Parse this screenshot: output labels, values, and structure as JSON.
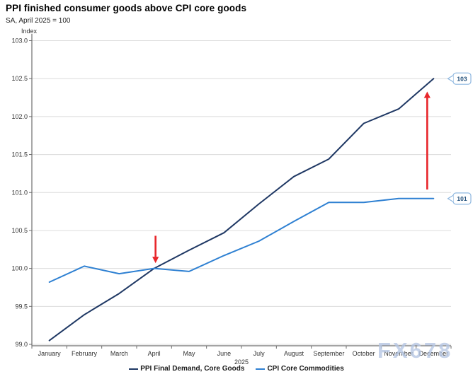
{
  "header": {
    "title": "PPI finished consumer goods above CPI core goods",
    "subtitle": "SA, April 2025 = 100"
  },
  "chart_data": {
    "type": "line",
    "title": "PPI finished consumer goods above CPI core goods",
    "subtitle": "SA, April 2025 = 100",
    "ylabel": "Index",
    "year_label": "2025",
    "ylim": [
      99.0,
      103.0
    ],
    "ytick_step": 0.5,
    "grid": true,
    "legend_position": "bottom",
    "categories": [
      "January",
      "February",
      "March",
      "April",
      "May",
      "June",
      "July",
      "August",
      "September",
      "October",
      "November",
      "December"
    ],
    "series": [
      {
        "name": "PPI Final Demand, Core Goods",
        "color": "#1f3864",
        "values": [
          99.05,
          99.39,
          99.67,
          100.0,
          100.24,
          100.47,
          100.85,
          101.21,
          101.44,
          101.91,
          102.1,
          102.5
        ]
      },
      {
        "name": "CPI Core Commodities",
        "color": "#2e80d2",
        "values": [
          99.82,
          100.03,
          99.93,
          100.0,
          99.96,
          100.17,
          100.36,
          100.62,
          100.87,
          100.87,
          100.92,
          100.92
        ]
      }
    ]
  },
  "annotations": {
    "arrows": [
      {
        "name": "april-crossing-arrow",
        "direction": "down",
        "month_index": 3,
        "x_offset": 2,
        "value_from": 100.43,
        "value_to": 100.07,
        "color": "#e8262b"
      },
      {
        "name": "december-gap-arrow",
        "direction": "up",
        "month_index": 11,
        "x_offset": -9,
        "value_from": 101.04,
        "value_to": 102.33,
        "color": "#e8262b"
      }
    ],
    "callouts": [
      {
        "label": "103",
        "series_index": 0,
        "text_color": "#1f4e79",
        "border_color": "#8fb8e0",
        "fill": "#ffffff"
      },
      {
        "label": "101",
        "series_index": 1,
        "text_color": "#1f4e79",
        "border_color": "#8fb8e0",
        "fill": "#ffffff"
      }
    ]
  },
  "watermark": {
    "text": "FX678",
    "color": "#b7c8e4"
  },
  "style": {
    "grid_color": "#dcdcdc",
    "axis_color": "#6e6e6e",
    "tick_text_color": "#333333",
    "background": "#ffffff"
  }
}
